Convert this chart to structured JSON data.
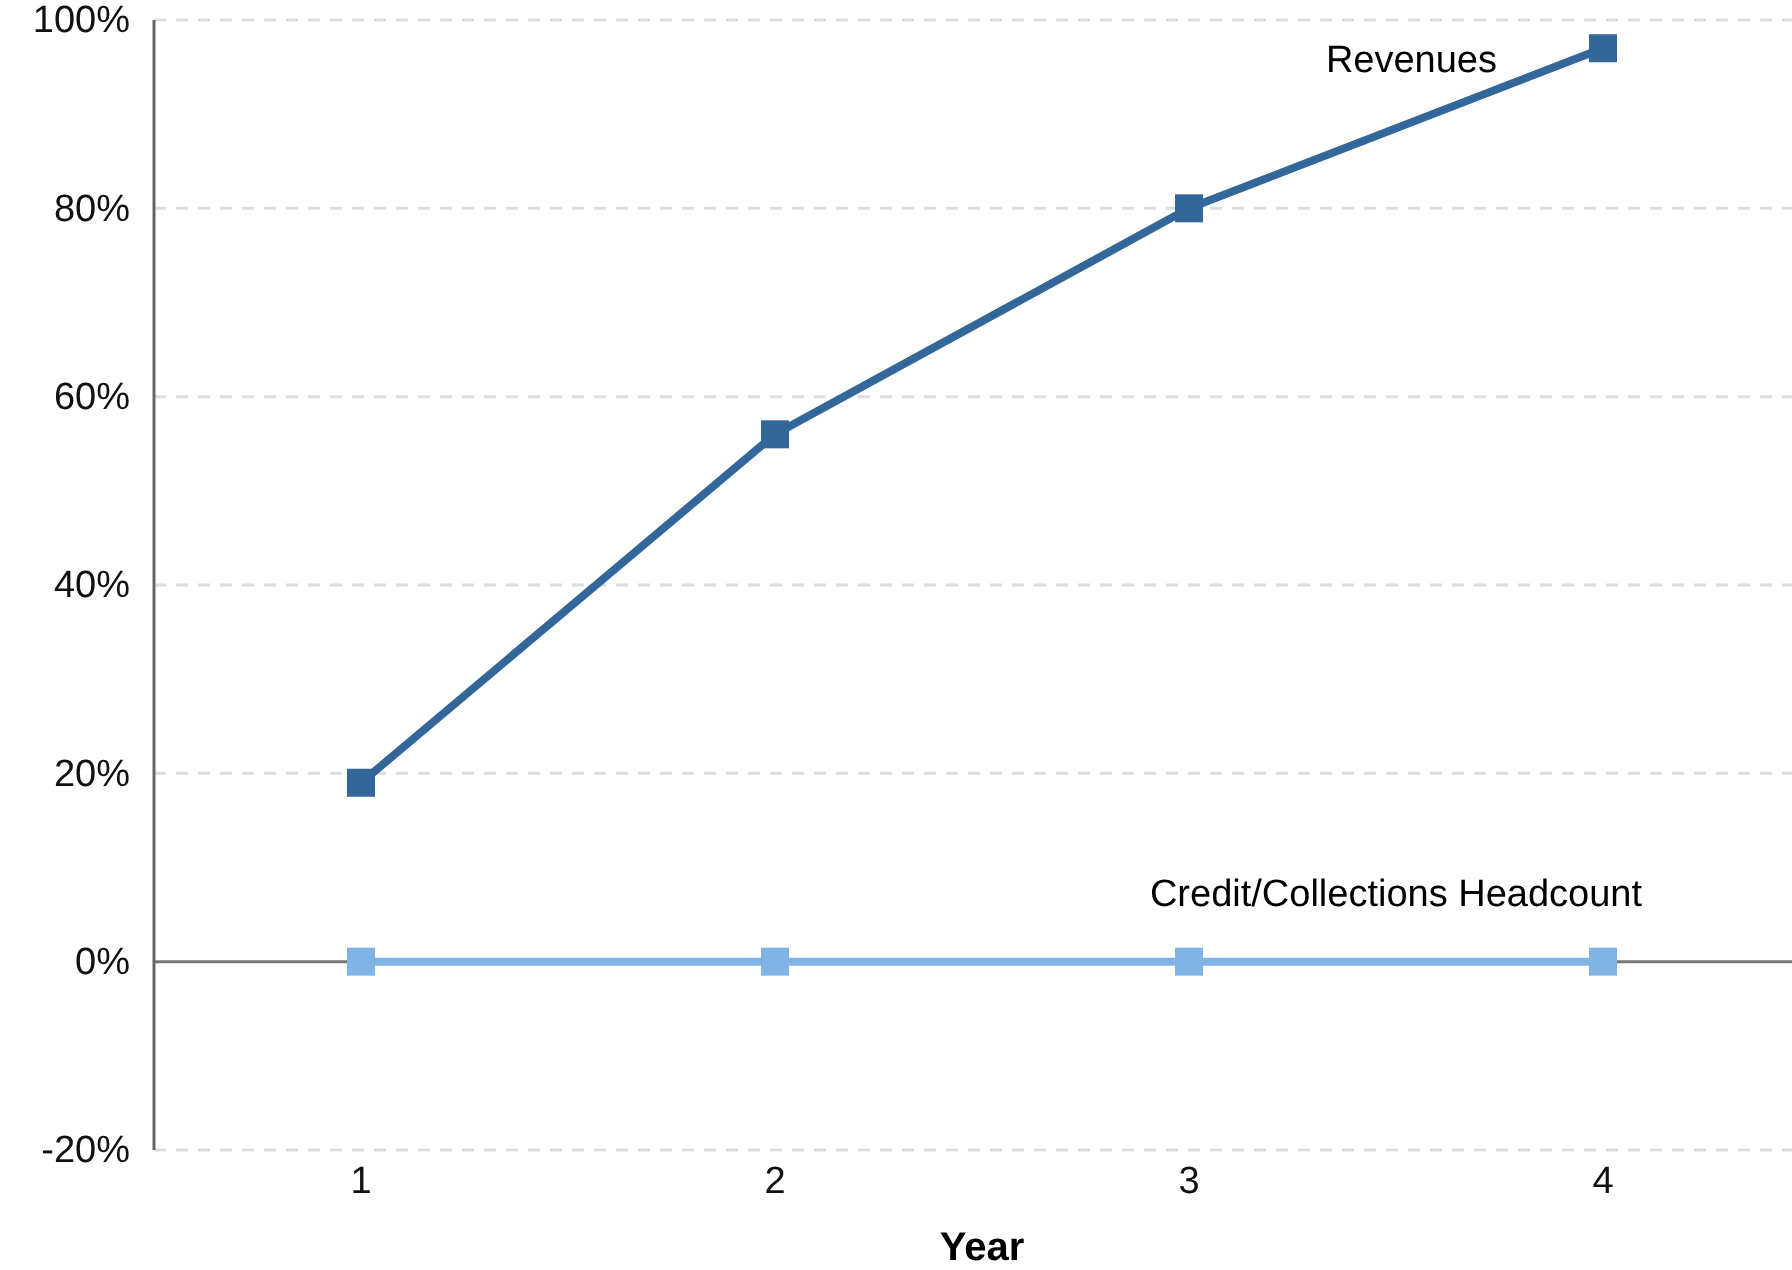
{
  "chart_data": {
    "type": "line",
    "xlabel": "Year",
    "categories": [
      "1",
      "2",
      "3",
      "4"
    ],
    "series": [
      {
        "name": "Revenues",
        "color": "#336699",
        "values": [
          19,
          56,
          80,
          97
        ]
      },
      {
        "name": "Credit/Collections Headcount",
        "color": "#80b3e6",
        "values": [
          0,
          0,
          0,
          0
        ]
      }
    ],
    "ylim": [
      -20,
      100
    ],
    "yticks": [
      {
        "value": -20,
        "label": "-20%"
      },
      {
        "value": 0,
        "label": "0%"
      },
      {
        "value": 20,
        "label": "20%"
      },
      {
        "value": 40,
        "label": "40%"
      },
      {
        "value": 60,
        "label": "60%"
      },
      {
        "value": 80,
        "label": "80%"
      },
      {
        "value": 100,
        "label": "100%"
      }
    ],
    "grid": "y",
    "marker": "square",
    "line_style": "solid"
  }
}
